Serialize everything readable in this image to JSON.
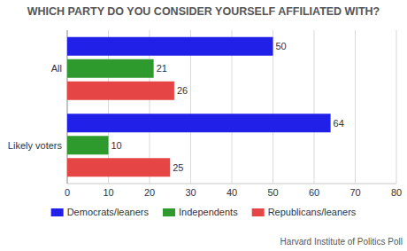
{
  "chart_data": {
    "type": "bar",
    "orientation": "horizontal",
    "title": "WHICH PARTY DO YOU CONSIDER YOURSELF AFFILIATED WITH?",
    "categories": [
      "All",
      "Likely voters"
    ],
    "series": [
      {
        "name": "Democrats/leaners",
        "color": "#2020e8",
        "values": [
          50,
          64
        ]
      },
      {
        "name": "Independents",
        "color": "#2e9a2e",
        "values": [
          21,
          10
        ]
      },
      {
        "name": "Republicans/leaners",
        "color": "#e64545",
        "values": [
          26,
          25
        ]
      }
    ],
    "xlim": [
      0,
      80
    ],
    "xticks": [
      0,
      10,
      20,
      30,
      40,
      50,
      60,
      70,
      80
    ],
    "grid": true,
    "data_labels": true,
    "legend": "bottom",
    "annotations": [
      "Harvard Institute of Politics Poll"
    ]
  }
}
